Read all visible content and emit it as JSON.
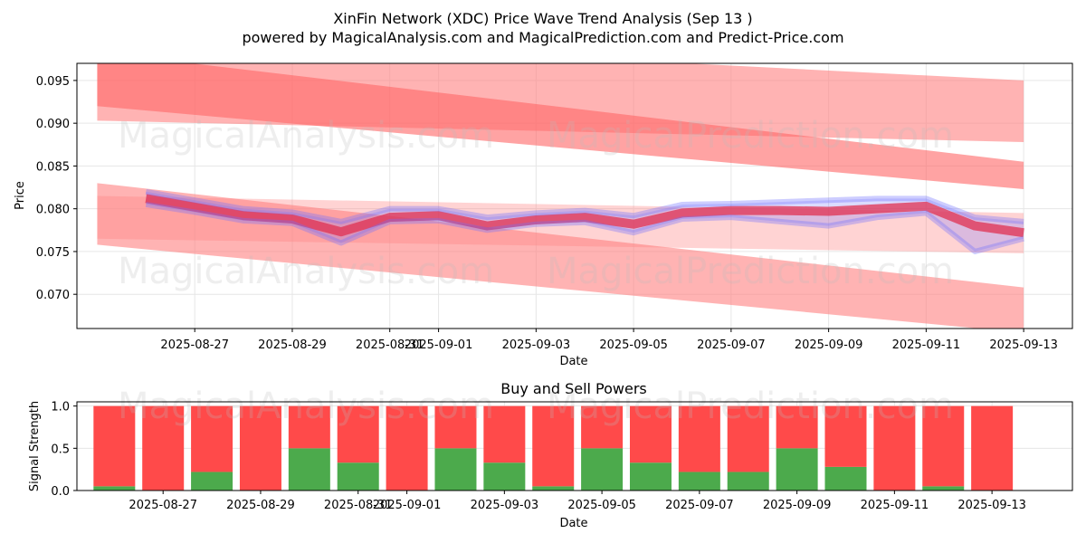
{
  "title": "XinFin Network (XDC) Price Wave Trend Analysis (Sep 13 )",
  "subtitle": "powered by MagicalAnalysis.com and MagicalPrediction.com and Predict-Price.com",
  "watermarks": [
    "MagicalAnalysis.com",
    "MagicalPrediction.com"
  ],
  "colors": {
    "band": "#ff8080",
    "bandDark": "#ff6666",
    "priceRed": "#e03050",
    "priceBlue": "#7070ff",
    "buy": "#4caa4c",
    "sell": "#ff4a4a",
    "grid": "#e6e6e6"
  },
  "chart_data": [
    {
      "type": "line",
      "title": "",
      "xlabel": "Date",
      "ylabel": "Price",
      "xlim": [
        "2025-08-24T14:00",
        "2025-09-14T00:00"
      ],
      "ylim": [
        0.066,
        0.097
      ],
      "grid": true,
      "xticks": [
        "2025-08-27",
        "2025-08-29",
        "2025-08-31",
        "2025-09-01",
        "2025-09-03",
        "2025-09-05",
        "2025-09-07",
        "2025-09-09",
        "2025-09-11",
        "2025-09-13"
      ],
      "yticks": [
        0.07,
        0.075,
        0.08,
        0.085,
        0.09,
        0.095
      ],
      "x": [
        "2025-08-26",
        "2025-08-27",
        "2025-08-28",
        "2025-08-29",
        "2025-08-30",
        "2025-08-31",
        "2025-09-01",
        "2025-09-02",
        "2025-09-03",
        "2025-09-04",
        "2025-09-05",
        "2025-09-06",
        "2025-09-07",
        "2025-09-08",
        "2025-09-09",
        "2025-09-10",
        "2025-09-11",
        "2025-09-12",
        "2025-09-13"
      ],
      "series": [
        {
          "values": [
            0.0812,
            0.0802,
            0.0792,
            0.0788,
            0.0773,
            0.079,
            0.0792,
            0.078,
            0.0787,
            0.079,
            0.0782,
            0.0795,
            0.0798,
            0.0798,
            0.0797,
            0.08,
            0.0803,
            0.078,
            0.0772
          ]
        },
        {
          "values": [
            0.0805,
            0.0796,
            0.0786,
            0.0783,
            0.076,
            0.0785,
            0.0786,
            0.0775,
            0.0782,
            0.0784,
            0.0772,
            0.0788,
            0.079,
            0.0785,
            0.078,
            0.079,
            0.0795,
            0.075,
            0.0765
          ]
        },
        {
          "values": [
            0.082,
            0.081,
            0.08,
            0.0796,
            0.0785,
            0.08,
            0.08,
            0.079,
            0.0795,
            0.0798,
            0.0792,
            0.0805,
            0.0806,
            0.0808,
            0.081,
            0.0812,
            0.0812,
            0.079,
            0.0785
          ]
        }
      ],
      "bands": [
        {
          "x": [
            "2025-08-25",
            "2025-09-13"
          ],
          "upper": [
            0.1005,
            0.095
          ],
          "lower": [
            0.0903,
            0.0878
          ]
        },
        {
          "x": [
            "2025-08-25",
            "2025-09-13"
          ],
          "upper": [
            0.0983,
            0.0855
          ],
          "lower": [
            0.092,
            0.0823
          ]
        },
        {
          "x": [
            "2025-08-25",
            "2025-09-13"
          ],
          "upper": [
            0.083,
            0.0708
          ],
          "lower": [
            0.0758,
            0.0655
          ]
        },
        {
          "x": [
            "2025-08-25",
            "2025-09-13"
          ],
          "upper": [
            0.0815,
            0.0795
          ],
          "lower": [
            0.0765,
            0.0748
          ]
        }
      ]
    },
    {
      "type": "bar",
      "title": "Buy and Sell Powers",
      "xlabel": "Date",
      "ylabel": "Signal Strength",
      "ylim": [
        0,
        1.05
      ],
      "grid": true,
      "xticks": [
        "2025-08-27",
        "2025-08-29",
        "2025-08-31",
        "2025-09-01",
        "2025-09-03",
        "2025-09-05",
        "2025-09-07",
        "2025-09-09",
        "2025-09-11",
        "2025-09-13"
      ],
      "yticks": [
        0.0,
        0.5,
        1.0
      ],
      "categories": [
        "2025-08-26",
        "2025-08-27",
        "2025-08-28",
        "2025-08-29",
        "2025-08-30",
        "2025-08-31",
        "2025-09-01",
        "2025-09-02",
        "2025-09-03",
        "2025-09-04",
        "2025-09-05",
        "2025-09-06",
        "2025-09-07",
        "2025-09-08",
        "2025-09-09",
        "2025-09-10",
        "2025-09-11",
        "2025-09-12",
        "2025-09-13"
      ],
      "series": [
        {
          "values": [
            0.05,
            0.0,
            0.22,
            0.0,
            0.5,
            0.33,
            0.0,
            0.5,
            0.33,
            0.05,
            0.5,
            0.33,
            0.22,
            0.22,
            0.5,
            0.28,
            0.0,
            0.05,
            0.0
          ]
        },
        {
          "values": [
            0.95,
            1.0,
            0.78,
            1.0,
            0.5,
            0.67,
            1.0,
            0.5,
            0.67,
            0.95,
            0.5,
            0.67,
            0.78,
            0.78,
            0.5,
            0.72,
            1.0,
            0.95,
            1.0
          ]
        }
      ]
    }
  ]
}
